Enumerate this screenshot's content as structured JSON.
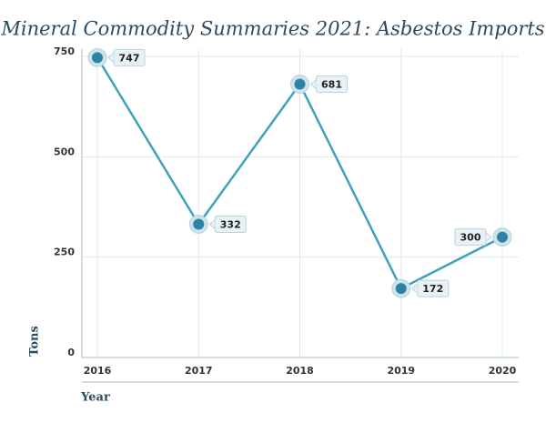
{
  "chart_data": {
    "type": "line",
    "title": "Mineral Commodity Summaries 2021: Asbestos Imports",
    "x_label": "Year",
    "y_label": "Tons",
    "categories": [
      "2016",
      "2017",
      "2018",
      "2019",
      "2020"
    ],
    "series": [
      {
        "name": "Imports",
        "color": "#3fa2bd",
        "values": [
          747,
          332,
          681,
          172,
          300
        ]
      }
    ],
    "ylim": [
      0,
      750
    ],
    "yticks": [
      0,
      250,
      500,
      750
    ],
    "grid": true
  }
}
